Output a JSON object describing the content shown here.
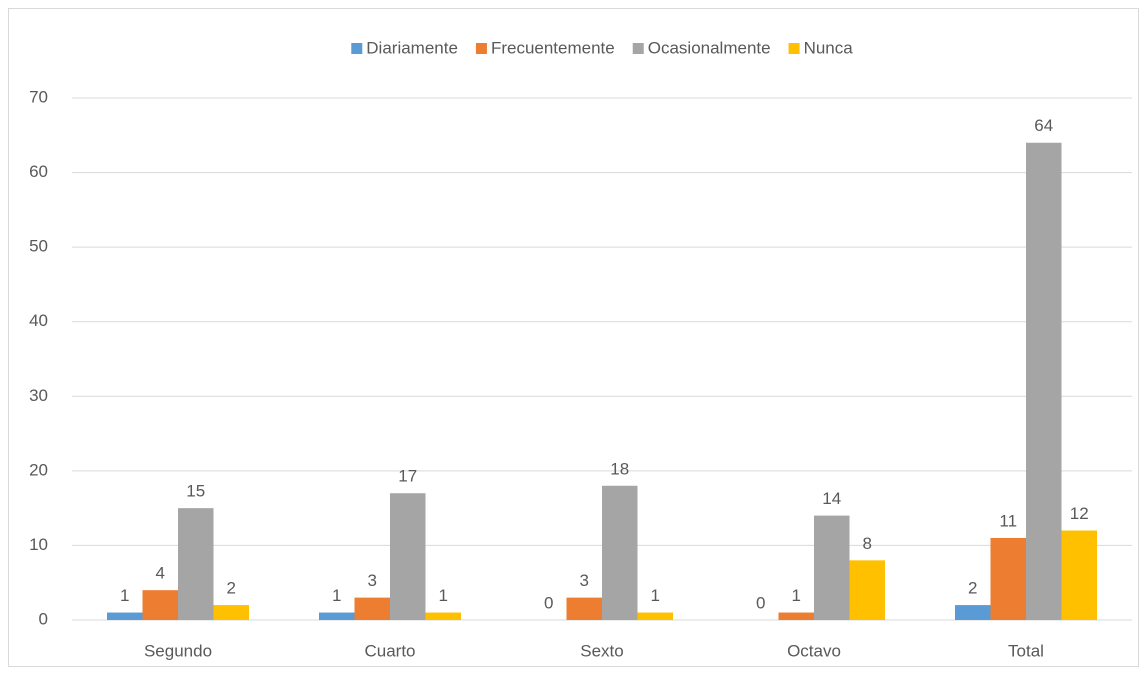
{
  "chart_data": {
    "type": "bar",
    "categories": [
      "Segundo",
      "Cuarto",
      "Sexto",
      "Octavo",
      "Total"
    ],
    "series": [
      {
        "name": "Diariamente",
        "color": "#5b9bd5",
        "values": [
          1,
          1,
          0,
          0,
          2
        ]
      },
      {
        "name": "Frecuentemente",
        "color": "#ed7d31",
        "values": [
          4,
          3,
          3,
          1,
          11
        ]
      },
      {
        "name": "Ocasionalmente",
        "color": "#a5a5a5",
        "values": [
          15,
          17,
          18,
          14,
          64
        ]
      },
      {
        "name": "Nunca",
        "color": "#ffc000",
        "values": [
          2,
          1,
          1,
          8,
          12
        ]
      }
    ],
    "ylim": [
      0,
      70
    ],
    "yticks": [
      0,
      10,
      20,
      30,
      40,
      50,
      60,
      70
    ],
    "grid": true,
    "legend": "top"
  }
}
